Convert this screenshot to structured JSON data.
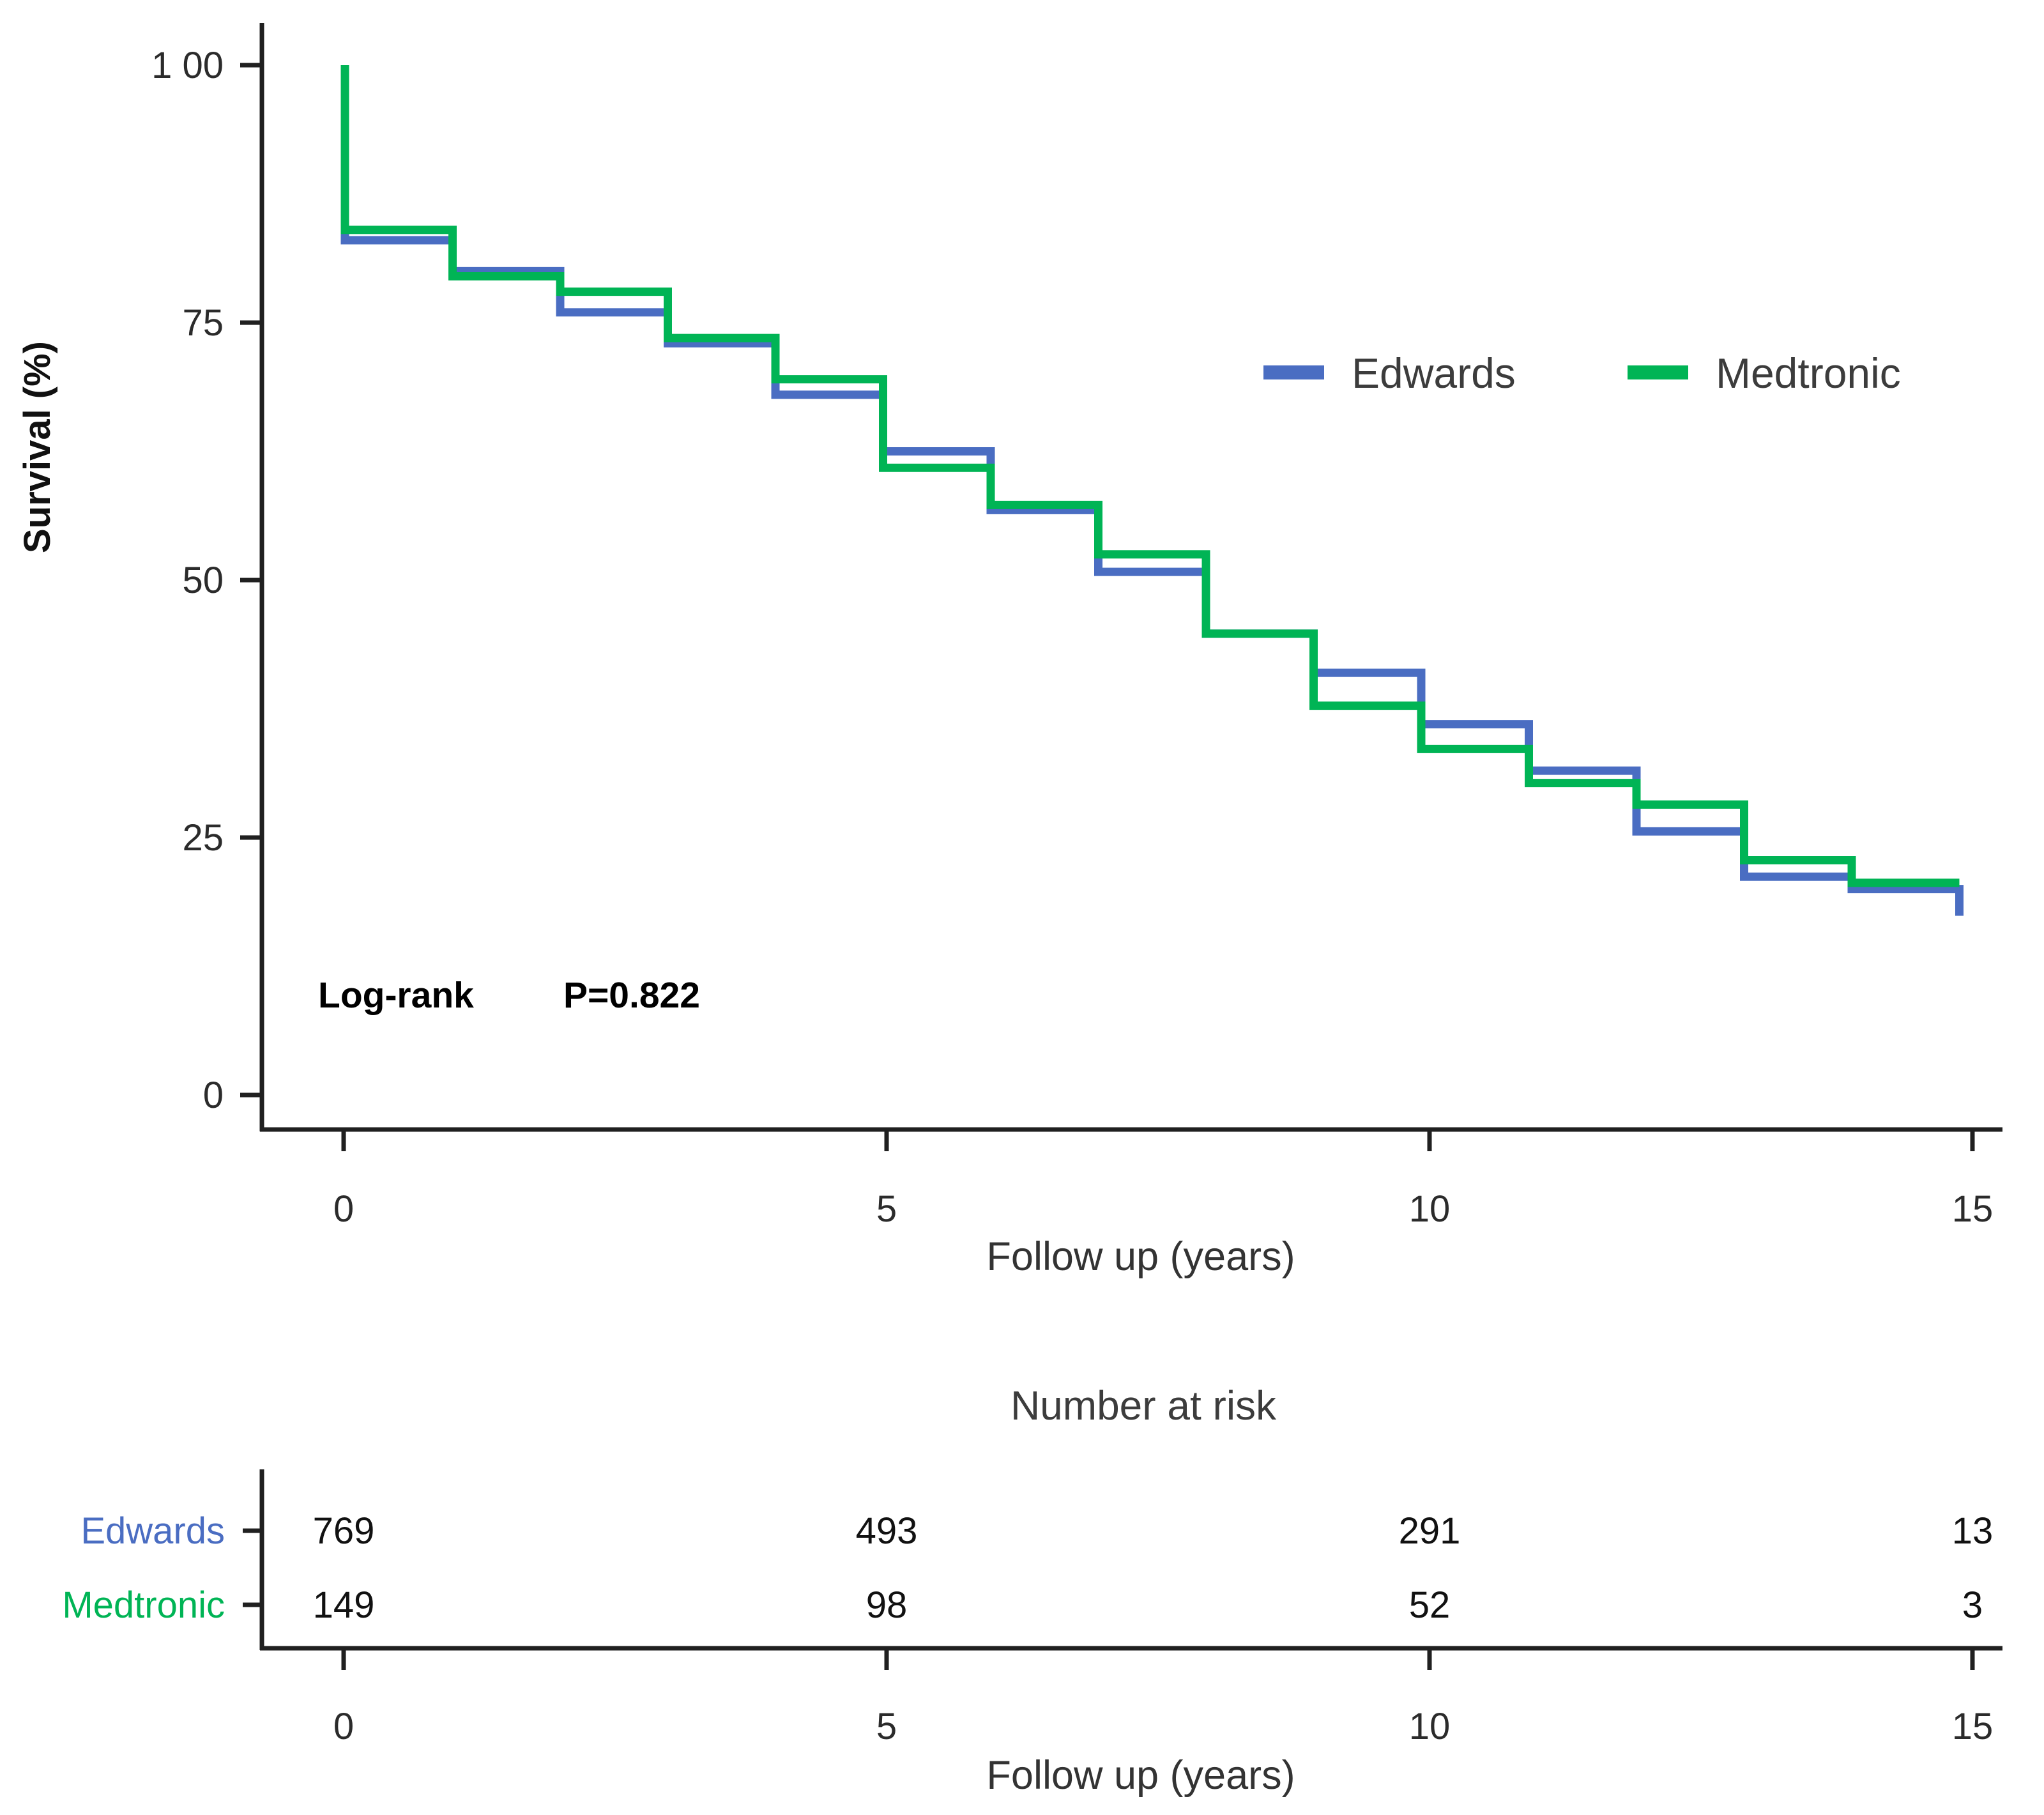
{
  "figure": {
    "background": "#ffffff",
    "axis_color": "#202020"
  },
  "chart_data": {
    "type": "line",
    "subtype": "kaplan-meier-step",
    "title": "",
    "xlabel": "Follow up (years)",
    "ylabel": "Survival (%)",
    "xlim": [
      0,
      15
    ],
    "ylim": [
      0,
      100
    ],
    "x_ticks": [
      0,
      5,
      10,
      15
    ],
    "y_ticks": [
      100,
      75,
      50,
      25,
      0
    ],
    "y_tick_labels": [
      "1 00",
      "75",
      "50",
      "25",
      "0"
    ],
    "grid": false,
    "legend_position": "upper right",
    "step_years": [
      0,
      1,
      2,
      3,
      4,
      5,
      6,
      7,
      8,
      9,
      10,
      11,
      12,
      13,
      14
    ],
    "series": [
      {
        "name": "Edwards",
        "color": "#4a6dc2",
        "start_value": 100,
        "values": [
          83,
          80,
          76,
          73,
          68,
          62.5,
          56.8,
          50.8,
          44.8,
          41,
          36,
          31.5,
          25.6,
          21.2,
          20.0
        ],
        "end_year": 15,
        "end_drop_to": 17.4
      },
      {
        "name": "Medtronic",
        "color": "#00b455",
        "start_value": 100,
        "values": [
          84,
          79.5,
          78,
          73.5,
          69.5,
          60.9,
          57.3,
          52.5,
          44.8,
          37.8,
          33.6,
          30.3,
          28.2,
          22.8,
          20.6
        ],
        "end_year": 15,
        "end_drop_to": null
      }
    ],
    "annotation": {
      "label": "Log-rank",
      "value": "P=0.822"
    }
  },
  "risk_table": {
    "title": "Number at risk",
    "xlabel": "Follow up (years)",
    "x_ticks": [
      0,
      5,
      10,
      15
    ],
    "rows": [
      {
        "name": "Edwards",
        "color": "#4a6dc2",
        "values": [
          "769",
          "493",
          "291",
          "13"
        ]
      },
      {
        "name": "Medtronic",
        "color": "#00b455",
        "values": [
          "149",
          "98",
          "52",
          "3"
        ]
      }
    ]
  }
}
